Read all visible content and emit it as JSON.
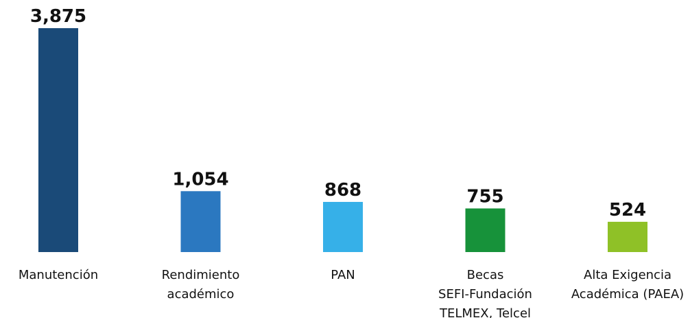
{
  "chart_data": {
    "type": "bar",
    "categories": [
      [
        "Manutención"
      ],
      [
        "Rendimiento",
        "académico"
      ],
      [
        "PAN"
      ],
      [
        "Becas",
        "SEFI-Fundación",
        "TELMEX, Telcel"
      ],
      [
        "Alta Exigencia",
        "Académica (PAEA)"
      ]
    ],
    "values": [
      3875,
      1054,
      868,
      755,
      524
    ],
    "value_labels": [
      "3,875",
      "1,054",
      "868",
      "755",
      "524"
    ],
    "colors": [
      "#1a4a78",
      "#2b78c0",
      "#36b0e8",
      "#17923a",
      "#8fc127"
    ]
  }
}
